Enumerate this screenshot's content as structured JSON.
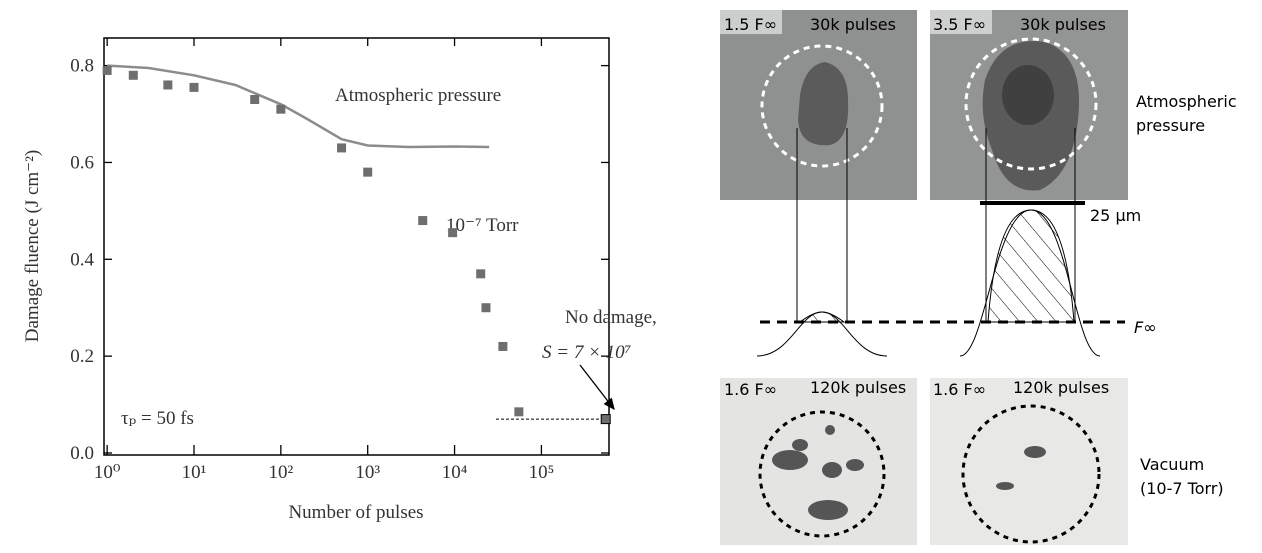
{
  "chart_data": {
    "type": "scatter",
    "ylabel": "Damage fluence (J cm⁻²)",
    "xlabel": "Number of pulses",
    "xscale": "log",
    "xlim": [
      0.92,
      600000
    ],
    "ylim": [
      0,
      0.857
    ],
    "xticks": [
      {
        "value": 1,
        "label": "10⁰"
      },
      {
        "value": 10,
        "label": "10¹"
      },
      {
        "value": 100,
        "label": "10²"
      },
      {
        "value": 1000,
        "label": "10³"
      },
      {
        "value": 10000,
        "label": "10⁴"
      },
      {
        "value": 100000,
        "label": "10⁵"
      }
    ],
    "yticks": [
      {
        "value": 0,
        "label": "0.0"
      },
      0.2,
      0.4,
      0.6,
      0.8
    ],
    "color": "#6e6e6e",
    "x": [
      1,
      2,
      5,
      10,
      50,
      100,
      500,
      1000,
      4300,
      9500,
      20000,
      23000,
      36000,
      55000,
      550000
    ],
    "values": [
      0.79,
      0.78,
      0.76,
      0.755,
      0.73,
      0.71,
      0.63,
      0.58,
      0.48,
      0.455,
      0.37,
      0.3,
      0.22,
      0.085,
      0.07
    ],
    "fit": {
      "color": "#8c8c8c",
      "x": [
        1,
        3,
        10,
        30,
        100,
        200,
        500,
        1000,
        3000,
        10000,
        25000
      ],
      "values": [
        0.8,
        0.795,
        0.78,
        0.76,
        0.72,
        0.69,
        0.648,
        0.635,
        0.632,
        0.633,
        0.632
      ]
    },
    "reference_line": {
      "x": [
        30000,
        520000
      ],
      "value": 0.07
    },
    "annotations": [
      "Atmospheric pressure",
      "10⁻⁷ Torr",
      "No damage,",
      "S = 7 × 10⁷",
      "τₚ = 50 fs"
    ]
  },
  "panels": {
    "images": [
      {
        "fluence": "1.5 F∞",
        "pulses": "30k pulses"
      },
      {
        "fluence": "3.5 F∞",
        "pulses": "30k pulses"
      },
      {
        "fluence": "1.6 F∞",
        "pulses": "120k pulses"
      },
      {
        "fluence": "1.6 F∞",
        "pulses": "120k pulses"
      }
    ],
    "row_labels": [
      [
        "Atmospheric",
        "pressure"
      ],
      [
        "Vacuum",
        "(10-7 Torr)"
      ]
    ],
    "scale_bar": "25 µm",
    "threshold_label": "F∞"
  }
}
